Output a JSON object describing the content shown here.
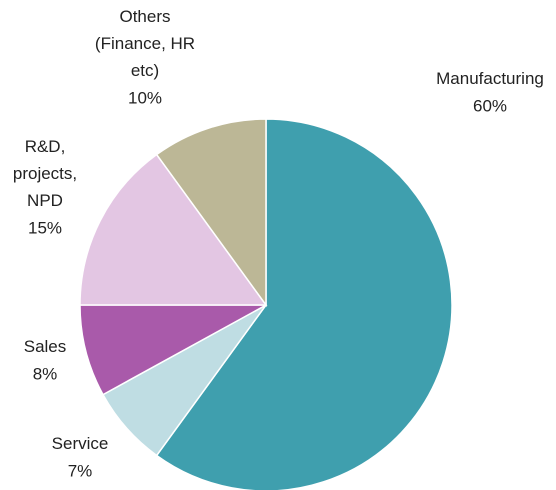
{
  "chart_data": {
    "type": "pie",
    "categories": [
      "Manufacturing",
      "Service",
      "Sales",
      "R&D,\nprojects,\nNPD",
      "Others\n(Finance, HR\netc)"
    ],
    "values": [
      60,
      7,
      8,
      15,
      10
    ],
    "value_labels": [
      "60%",
      "7%",
      "8%",
      "15%",
      "10%"
    ],
    "colors": [
      "#3f9fae",
      "#bfdde3",
      "#a95aaa",
      "#e3c6e3",
      "#bcb796"
    ]
  }
}
